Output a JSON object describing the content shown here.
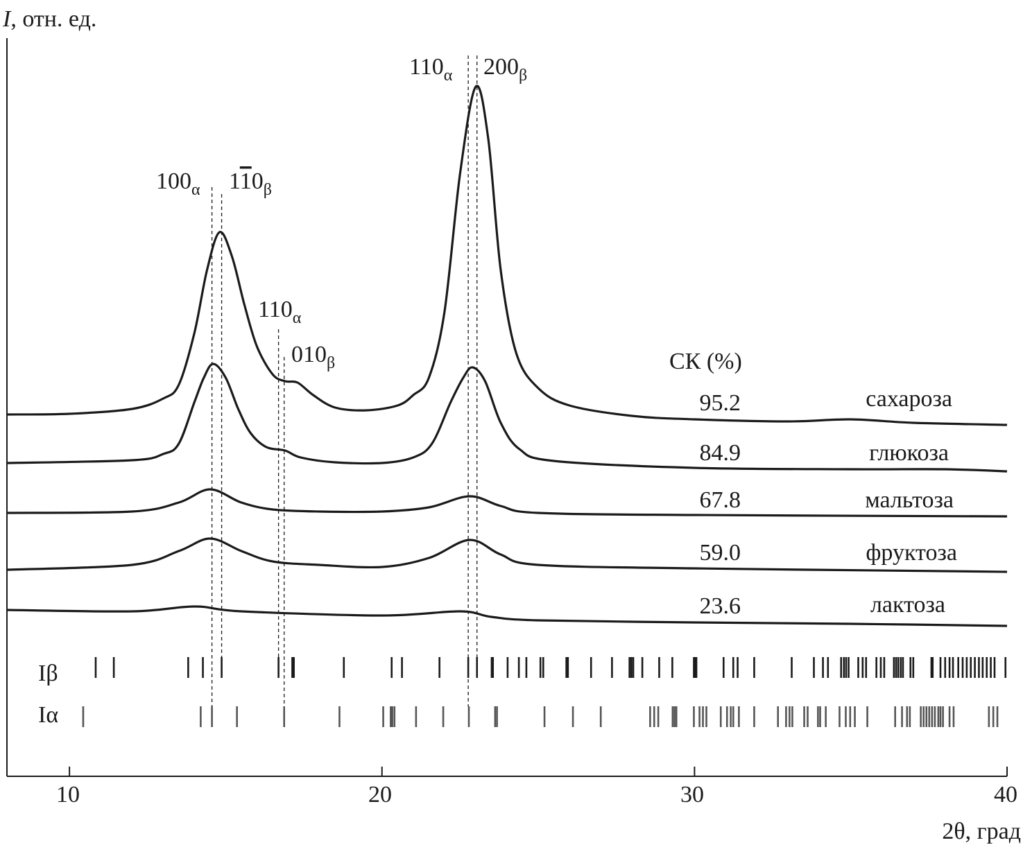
{
  "chart_data": {
    "type": "line",
    "ylabel": "I, отн. ед.",
    "ylabel_var": "I",
    "ylabel_rest": ", отн. ед.",
    "xlabel": "2θ, град",
    "xlim": [
      8,
      40
    ],
    "ylim": [
      0,
      109
    ],
    "xticks": [
      10,
      20,
      30,
      40
    ],
    "grid": false,
    "legend_header": "СК (%)",
    "color": "#1a1a1a",
    "series": [
      {
        "name": "сахароза",
        "ck": "95.2",
        "x": [
          8,
          10,
          12,
          13,
          13.5,
          14,
          14.4,
          14.8,
          15.2,
          15.6,
          16,
          16.5,
          16.9,
          17.3,
          17.8,
          18.5,
          19.5,
          20.5,
          21,
          21.5,
          22,
          22.5,
          23.0,
          23.4,
          23.8,
          24.3,
          25,
          26,
          28,
          30,
          33,
          35,
          37,
          40
        ],
        "y": [
          52.2,
          52.3,
          53.0,
          54.5,
          56.5,
          64,
          73,
          78.5,
          75,
          68,
          62,
          58,
          57,
          56.8,
          55,
          53.2,
          52.8,
          53.5,
          55,
          57.5,
          67,
          87,
          99.5,
          92,
          73,
          61,
          56,
          53.5,
          52,
          51.5,
          51.2,
          51.5,
          51,
          50.7
        ]
      },
      {
        "name": "глюкоза",
        "ck": "84.9",
        "x": [
          8,
          12,
          13,
          13.5,
          14,
          14.3,
          14.6,
          15,
          15.4,
          15.8,
          16.3,
          16.9,
          17.4,
          18.5,
          20,
          21,
          21.6,
          22.2,
          22.6,
          22.9,
          23.3,
          23.8,
          24.4,
          25.5,
          30,
          35,
          38,
          40
        ],
        "y": [
          45.2,
          45.6,
          46.5,
          48,
          54,
          57.5,
          59.5,
          57.5,
          53,
          49.5,
          47.5,
          47,
          46,
          45.3,
          45.2,
          46,
          48,
          54,
          57.5,
          59,
          57,
          51,
          47.2,
          45.5,
          44.5,
          44.3,
          44.3,
          44
        ]
      },
      {
        "name": "мальтоза",
        "ck": "67.8",
        "x": [
          8,
          12,
          13.5,
          14.5,
          15.5,
          16.5,
          18,
          20,
          21.5,
          22.8,
          23.8,
          25,
          30,
          40
        ],
        "y": [
          38,
          38.2,
          39.5,
          41.4,
          39.5,
          38.5,
          38.2,
          38.2,
          38.8,
          40.4,
          39,
          38,
          37.7,
          37.5
        ]
      },
      {
        "name": "фруктоза",
        "ck": "59.0",
        "x": [
          8,
          12,
          13.5,
          14.5,
          15.5,
          16.5,
          18,
          20,
          21.5,
          22.8,
          23.8,
          25,
          30,
          38,
          40
        ],
        "y": [
          29.8,
          30.5,
          32.5,
          34.3,
          32.5,
          31,
          30.5,
          30.2,
          31.5,
          34.1,
          32,
          30.5,
          30,
          29.6,
          29.5
        ]
      },
      {
        "name": "лактоза",
        "ck": "23.6",
        "x": [
          8,
          12,
          14,
          15.5,
          20,
          22.5,
          23.5,
          25,
          30,
          35,
          40
        ],
        "y": [
          24,
          23.8,
          24.5,
          23.8,
          23.2,
          23.8,
          23,
          22.5,
          22.2,
          22,
          21.7
        ]
      }
    ],
    "reference_lines": [
      {
        "name": "Iβ",
        "color": "#1a1a1a",
        "positions": [
          10.84,
          11.42,
          13.8,
          14.27,
          14.87,
          16.69,
          17.13,
          17.18,
          18.78,
          20.31,
          20.64,
          21.84,
          22.76,
          23.04,
          23.51,
          23.55,
          24.02,
          24.38,
          24.62,
          25.07,
          25.16,
          25.9,
          25.95,
          26.69,
          27.36,
          27.92,
          27.98,
          28.04,
          28.33,
          28.87,
          29.29,
          29.98,
          30.02,
          30.06,
          30.93,
          31.24,
          31.38,
          31.91,
          33.11,
          33.82,
          34.11,
          34.27,
          34.69,
          34.78,
          34.85,
          34.93,
          35.24,
          35.38,
          35.49,
          35.82,
          35.96,
          36.07,
          36.38,
          36.45,
          36.52,
          36.6,
          36.67,
          36.91,
          37.0,
          37.58,
          37.62,
          37.87,
          38.02,
          38.16,
          38.27,
          38.44,
          38.58,
          38.71,
          38.84,
          38.97,
          39.1,
          39.22,
          39.35,
          39.48,
          39.6,
          39.95
        ]
      },
      {
        "name": "Iα",
        "color": "#555555",
        "positions": [
          10.44,
          14.2,
          14.56,
          15.36,
          16.87,
          18.64,
          20.04,
          20.28,
          20.33,
          20.4,
          21.09,
          21.96,
          22.78,
          23.62,
          23.68,
          25.2,
          26.11,
          27.0,
          28.58,
          28.71,
          28.84,
          29.3,
          29.36,
          29.42,
          29.98,
          30.16,
          30.27,
          30.38,
          30.84,
          31.04,
          31.16,
          31.24,
          31.42,
          31.91,
          32.67,
          32.93,
          33.04,
          33.13,
          33.51,
          33.62,
          33.95,
          34.02,
          34.2,
          34.64,
          34.84,
          34.98,
          35.13,
          35.53,
          36.42,
          36.64,
          36.8,
          36.89,
          37.24,
          37.33,
          37.42,
          37.51,
          37.6,
          37.69,
          37.8,
          37.87,
          37.95,
          38.16,
          38.29,
          39.42,
          39.56,
          39.69
        ]
      }
    ],
    "annotations": [
      {
        "main": "100",
        "sub": "α",
        "x": 14.56
      },
      {
        "main": "1",
        "bar": "1",
        "rest": "0",
        "sub": "β",
        "x": 14.87
      },
      {
        "main": "110",
        "sub": "α",
        "x": 16.69
      },
      {
        "main": "010",
        "sub": "β",
        "x": 16.87
      },
      {
        "main": "110",
        "sub": "α",
        "x": 22.76
      },
      {
        "main": "200",
        "sub": "β",
        "x": 23.04
      }
    ]
  }
}
